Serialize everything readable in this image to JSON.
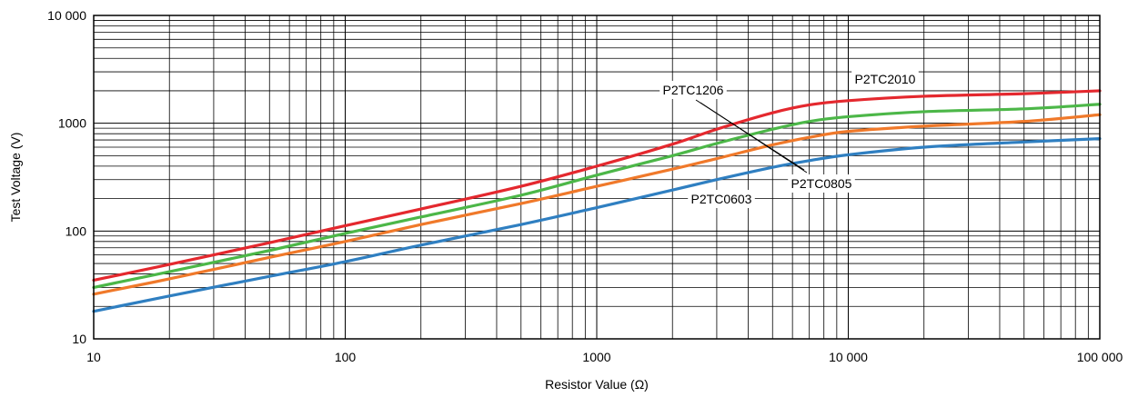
{
  "chart_data": {
    "type": "line",
    "xlabel": "Resistor Value (Ω)",
    "ylabel": "Test Voltage (V)",
    "xscale": "log",
    "yscale": "log",
    "xlim": [
      10,
      100000
    ],
    "ylim": [
      10,
      10000
    ],
    "grid": true,
    "x_ticks": [
      {
        "value": 10,
        "label": "10"
      },
      {
        "value": 100,
        "label": "100"
      },
      {
        "value": 1000,
        "label": "1000"
      },
      {
        "value": 10000,
        "label": "10 000"
      },
      {
        "value": 100000,
        "label": "100 000"
      }
    ],
    "y_ticks": [
      {
        "value": 10,
        "label": "10"
      },
      {
        "value": 100,
        "label": "100"
      },
      {
        "value": 1000,
        "label": "1000"
      },
      {
        "value": 10000,
        "label": "10 000"
      }
    ],
    "series": [
      {
        "name": "P2TC2010",
        "color": "#e4282e",
        "points": [
          [
            10,
            35
          ],
          [
            20,
            49
          ],
          [
            50,
            78
          ],
          [
            100,
            112
          ],
          [
            200,
            160
          ],
          [
            500,
            260
          ],
          [
            1000,
            400
          ],
          [
            2000,
            640
          ],
          [
            3000,
            880
          ],
          [
            5000,
            1250
          ],
          [
            7000,
            1480
          ],
          [
            10000,
            1620
          ],
          [
            20000,
            1780
          ],
          [
            50000,
            1880
          ],
          [
            100000,
            2000
          ]
        ]
      },
      {
        "name": "P2TC1206",
        "color": "#4cb748",
        "points": [
          [
            10,
            30
          ],
          [
            20,
            42
          ],
          [
            50,
            66
          ],
          [
            100,
            95
          ],
          [
            200,
            135
          ],
          [
            500,
            215
          ],
          [
            1000,
            330
          ],
          [
            2000,
            500
          ],
          [
            3000,
            650
          ],
          [
            5000,
            880
          ],
          [
            7000,
            1040
          ],
          [
            10000,
            1150
          ],
          [
            20000,
            1280
          ],
          [
            50000,
            1360
          ],
          [
            100000,
            1500
          ]
        ]
      },
      {
        "name": "P2TC0805",
        "color": "#f0792a",
        "points": [
          [
            10,
            26
          ],
          [
            20,
            36
          ],
          [
            50,
            57
          ],
          [
            100,
            80
          ],
          [
            200,
            115
          ],
          [
            500,
            180
          ],
          [
            1000,
            260
          ],
          [
            2000,
            375
          ],
          [
            3000,
            470
          ],
          [
            5000,
            630
          ],
          [
            7000,
            740
          ],
          [
            10000,
            840
          ],
          [
            20000,
            940
          ],
          [
            50000,
            1040
          ],
          [
            100000,
            1200
          ]
        ]
      },
      {
        "name": "P2TC0603",
        "color": "#2f7fc1",
        "points": [
          [
            10,
            18
          ],
          [
            20,
            25
          ],
          [
            50,
            38
          ],
          [
            100,
            52
          ],
          [
            200,
            74
          ],
          [
            500,
            115
          ],
          [
            1000,
            165
          ],
          [
            2000,
            240
          ],
          [
            3000,
            300
          ],
          [
            5000,
            390
          ],
          [
            7000,
            450
          ],
          [
            10000,
            510
          ],
          [
            20000,
            600
          ],
          [
            50000,
            670
          ],
          [
            100000,
            720
          ]
        ]
      }
    ],
    "annotations": [
      {
        "text": "P2TC2010",
        "series": "P2TC2010"
      },
      {
        "text": "P2TC1206",
        "series": "P2TC1206"
      },
      {
        "text": "P2TC0805",
        "series": "P2TC0805"
      },
      {
        "text": "P2TC0603",
        "series": "P2TC0603"
      }
    ]
  }
}
